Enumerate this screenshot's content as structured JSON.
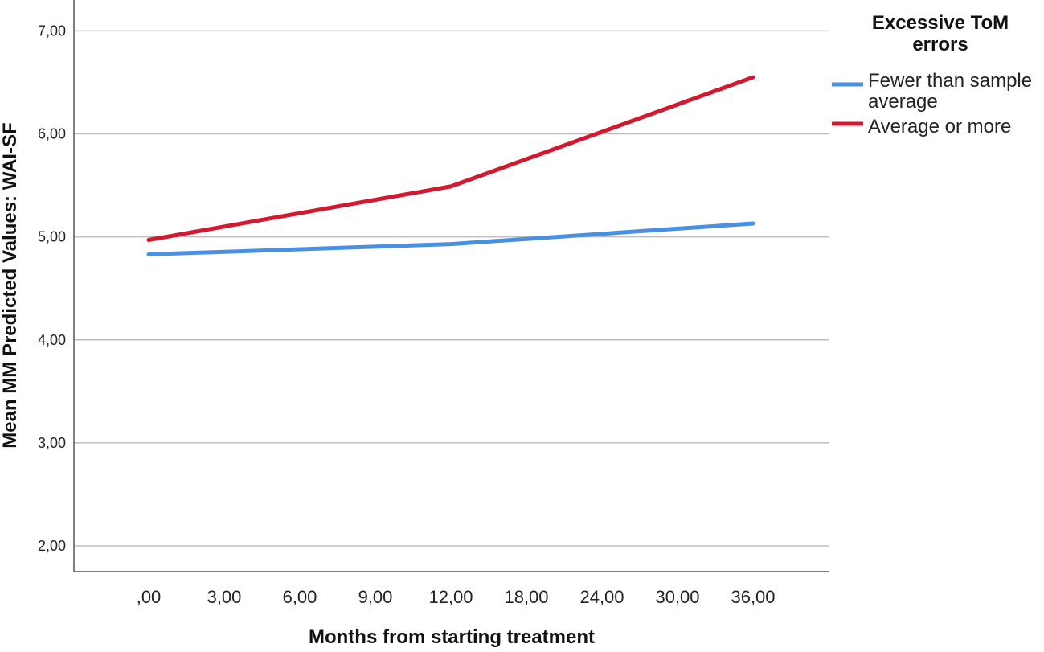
{
  "chart_data": {
    "type": "line",
    "xlabel": "Months from starting treatment",
    "ylabel": "Mean MM Predicted Values: WAI-SF",
    "categories": [
      ",00",
      "3,00",
      "6,00",
      "9,00",
      "12,00",
      "18,00",
      "24,00",
      "30,00",
      "36,00"
    ],
    "y_ticks": [
      "2,00",
      "3,00",
      "4,00",
      "5,00",
      "6,00",
      "7,00"
    ],
    "ylim": [
      1.75,
      7.3
    ],
    "grid": true,
    "legend": {
      "title_lines": [
        "Excessive ToM",
        "errors"
      ],
      "placement": "right",
      "entries": [
        {
          "label_lines": [
            "Fewer than sample",
            "average"
          ]
        },
        {
          "label_lines": [
            "Average or more"
          ]
        }
      ]
    },
    "series": [
      {
        "name": "Fewer than sample average",
        "color": "#4a8fe0",
        "x": [
          ",00",
          "12,00",
          "36,00"
        ],
        "values": [
          4.83,
          4.93,
          5.13
        ]
      },
      {
        "name": "Average or more",
        "color": "#d11a2f",
        "x": [
          ",00",
          "12,00",
          "36,00"
        ],
        "values": [
          4.97,
          5.49,
          6.55
        ]
      }
    ]
  }
}
